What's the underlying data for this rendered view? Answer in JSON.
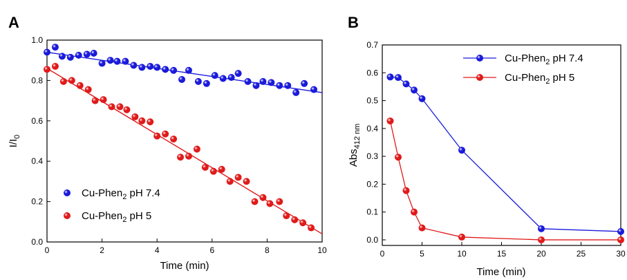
{
  "chart_data": [
    {
      "panel": "A",
      "type": "scatter",
      "xlabel": "Time (min)",
      "ylabel_main": "I/I",
      "ylabel_sub": "0",
      "xlim": [
        0,
        10
      ],
      "ylim": [
        0,
        1.0
      ],
      "xticks": [
        "0",
        "2",
        "4",
        "6",
        "8",
        "10"
      ],
      "yticks": [
        "0.0",
        "0.2",
        "0.4",
        "0.6",
        "0.8",
        "1.0"
      ],
      "legend_position": "bottom-left",
      "series": [
        {
          "name_main": "Cu-Phen",
          "name_sub": "2",
          "name_rest": " pH 7.4",
          "color": "#1a1adb",
          "x": [
            0,
            0.3,
            0.55,
            0.85,
            1.15,
            1.45,
            1.7,
            2.0,
            2.3,
            2.55,
            2.85,
            3.15,
            3.45,
            3.75,
            4.0,
            4.3,
            4.6,
            4.9,
            5.15,
            5.5,
            5.8,
            6.1,
            6.4,
            6.7,
            6.95,
            7.3,
            7.6,
            7.85,
            8.15,
            8.45,
            8.75,
            9.05,
            9.35,
            9.7
          ],
          "y": [
            0.94,
            0.965,
            0.92,
            0.915,
            0.925,
            0.93,
            0.935,
            0.885,
            0.9,
            0.895,
            0.895,
            0.875,
            0.865,
            0.87,
            0.865,
            0.855,
            0.85,
            0.805,
            0.85,
            0.795,
            0.785,
            0.825,
            0.81,
            0.815,
            0.835,
            0.795,
            0.775,
            0.795,
            0.79,
            0.775,
            0.775,
            0.74,
            0.785,
            0.755
          ],
          "fit": [
            [
              0,
              0.94
            ],
            [
              10,
              0.74
            ]
          ]
        },
        {
          "name_main": "Cu-Phen",
          "name_sub": "2",
          "name_rest": " pH 5",
          "color": "#e01a1a",
          "x": [
            0,
            0.3,
            0.6,
            0.9,
            1.2,
            1.5,
            1.75,
            2.05,
            2.35,
            2.65,
            2.9,
            3.2,
            3.45,
            3.75,
            4.0,
            4.3,
            4.6,
            4.85,
            5.15,
            5.45,
            5.75,
            6.05,
            6.35,
            6.65,
            6.95,
            7.25,
            7.55,
            7.85,
            8.1,
            8.45,
            8.7,
            9.0,
            9.3,
            9.6
          ],
          "y": [
            0.855,
            0.87,
            0.795,
            0.8,
            0.775,
            0.755,
            0.7,
            0.705,
            0.67,
            0.67,
            0.655,
            0.62,
            0.6,
            0.595,
            0.525,
            0.535,
            0.51,
            0.42,
            0.425,
            0.46,
            0.37,
            0.35,
            0.36,
            0.3,
            0.32,
            0.3,
            0.2,
            0.22,
            0.19,
            0.2,
            0.13,
            0.11,
            0.095,
            0.07
          ],
          "fit": [
            [
              0,
              0.86
            ],
            [
              10,
              0.04
            ]
          ]
        }
      ]
    },
    {
      "panel": "B",
      "type": "line",
      "xlabel": "Time (min)",
      "ylabel_main": "Abs",
      "ylabel_sub": "412 nm",
      "xlim": [
        0,
        30
      ],
      "ylim": [
        -0.02,
        0.7
      ],
      "xticks": [
        "0",
        "5",
        "10",
        "15",
        "20",
        "25",
        "30"
      ],
      "yticks": [
        "0.0",
        "0.1",
        "0.2",
        "0.3",
        "0.4",
        "0.5",
        "0.6",
        "0.7"
      ],
      "legend_position": "top-right",
      "series": [
        {
          "name_main": "Cu-Phen",
          "name_sub": "2",
          "name_rest": " pH 7.4",
          "color": "#1a1adb",
          "x": [
            1,
            2,
            3,
            4,
            5,
            10,
            20,
            30
          ],
          "y": [
            0.585,
            0.583,
            0.56,
            0.538,
            0.507,
            0.322,
            0.04,
            0.03
          ]
        },
        {
          "name_main": "Cu-Phen",
          "name_sub": "2",
          "name_rest": " pH 5",
          "color": "#e01a1a",
          "x": [
            1,
            2,
            3,
            4,
            5,
            10,
            20,
            30
          ],
          "y": [
            0.427,
            0.297,
            0.177,
            0.1,
            0.043,
            0.01,
            0.0,
            0.0
          ]
        }
      ]
    }
  ]
}
